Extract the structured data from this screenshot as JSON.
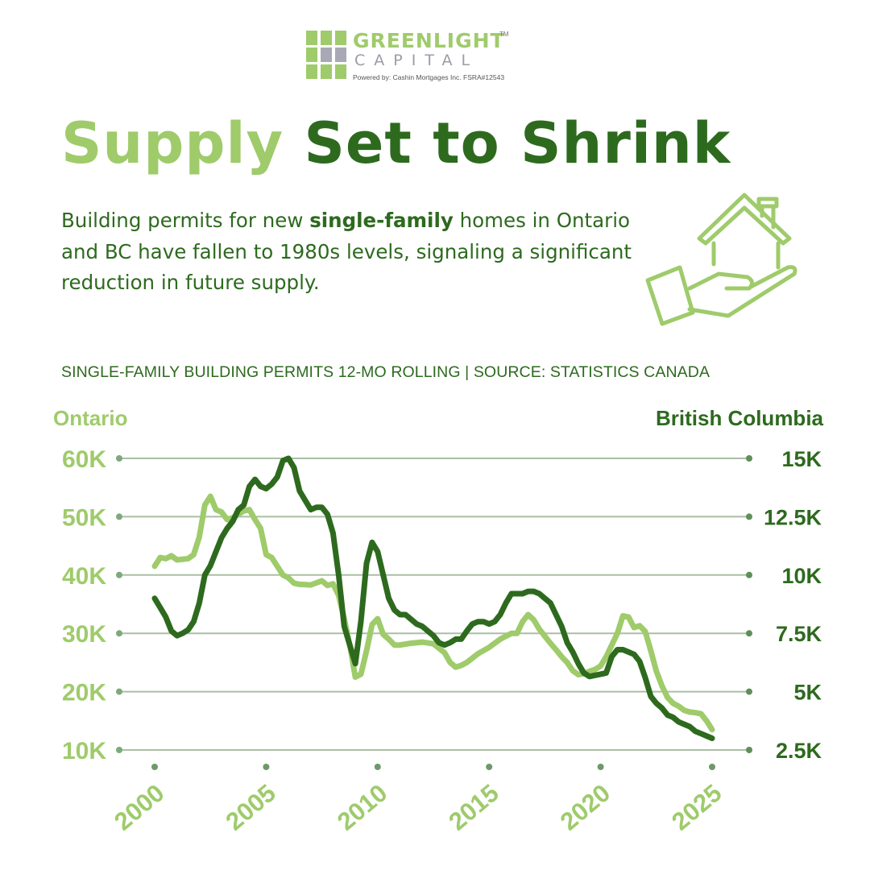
{
  "logo": {
    "name": "GREENLIGHT",
    "tm": "TM",
    "sub": "CAPITAL",
    "powered": "Powered by:  Cashin Mortgages Inc.  FSRA#12543"
  },
  "title": {
    "part1": "Supply",
    "part2": "Set to Shrink"
  },
  "description": {
    "before": "Building permits for new ",
    "bold": "single-family",
    "after": " homes in Ontario and BC have fallen to 1980s levels, signaling a significant reduction in future supply."
  },
  "icon": "house-in-hand-icon",
  "colors": {
    "light_green": "#9fcb6b",
    "dark_green": "#2d6a1e",
    "grid": "#a9bfa4"
  },
  "chart_data": {
    "type": "line",
    "title": "SINGLE-FAMILY BUILDING PERMITS 12-MO ROLLING | SOURCE: STATISTICS CANADA",
    "legend": "none",
    "grid": true,
    "x_ticks": [
      "2000",
      "2005",
      "2010",
      "2015",
      "2020",
      "2025"
    ],
    "xlim": [
      2000,
      2025
    ],
    "left_axis": {
      "label": "Ontario",
      "ticks": [
        "60K",
        "50K",
        "40K",
        "30K",
        "20K",
        "10K"
      ],
      "tick_values": [
        60000,
        50000,
        40000,
        30000,
        20000,
        10000
      ],
      "ylim": [
        10000,
        60000
      ]
    },
    "right_axis": {
      "label": "British Columbia",
      "ticks": [
        "15K",
        "12.5K",
        "10K",
        "7.5K",
        "5K",
        "2.5K"
      ],
      "tick_values": [
        15000,
        12500,
        10000,
        7500,
        5000,
        2500
      ],
      "ylim": [
        2500,
        15000
      ]
    },
    "series": [
      {
        "name": "Ontario",
        "axis": "left",
        "color": "#9fcb6b",
        "x": [
          2000.0,
          2000.25,
          2000.5,
          2000.75,
          2001.0,
          2001.5,
          2001.75,
          2002.0,
          2002.25,
          2002.5,
          2002.75,
          2003.0,
          2003.25,
          2003.5,
          2003.75,
          2004.0,
          2004.25,
          2004.5,
          2004.75,
          2005.0,
          2005.25,
          2005.5,
          2005.75,
          2006.0,
          2006.25,
          2006.5,
          2007.0,
          2007.5,
          2007.75,
          2008.0,
          2008.25,
          2008.5,
          2008.75,
          2009.0,
          2009.25,
          2009.5,
          2009.75,
          2010.0,
          2010.25,
          2010.5,
          2010.75,
          2011.0,
          2011.5,
          2012.0,
          2012.5,
          2013.0,
          2013.25,
          2013.5,
          2013.75,
          2014.0,
          2014.5,
          2015.0,
          2015.5,
          2016.0,
          2016.25,
          2016.5,
          2016.75,
          2017.0,
          2017.25,
          2017.5,
          2017.75,
          2018.0,
          2018.25,
          2018.5,
          2018.75,
          2019.0,
          2019.25,
          2019.5,
          2019.75,
          2020.0,
          2020.25,
          2020.5,
          2020.75,
          2021.0,
          2021.25,
          2021.5,
          2021.75,
          2022.0,
          2022.25,
          2022.5,
          2022.75,
          2023.0,
          2023.25,
          2023.5,
          2023.75,
          2024.0,
          2024.25,
          2024.5,
          2024.75,
          2025.0
        ],
        "values": [
          41500,
          43000,
          42800,
          43300,
          42600,
          42800,
          43500,
          46500,
          52000,
          53500,
          51200,
          50800,
          49500,
          49800,
          50400,
          51000,
          51200,
          49500,
          48000,
          43500,
          43000,
          41500,
          40000,
          39500,
          38600,
          38400,
          38300,
          39000,
          38200,
          38500,
          36500,
          32500,
          28000,
          22500,
          23000,
          27000,
          31500,
          32500,
          29800,
          29000,
          28000,
          28000,
          28300,
          28500,
          28200,
          26700,
          25000,
          24200,
          24500,
          25000,
          26500,
          27600,
          29000,
          30000,
          30000,
          32000,
          33200,
          32300,
          30700,
          29500,
          28300,
          27200,
          26000,
          25000,
          23600,
          22900,
          23100,
          23500,
          23800,
          24400,
          26000,
          28000,
          30000,
          33000,
          32800,
          31000,
          31300,
          30300,
          27000,
          23500,
          21000,
          19000,
          18000,
          17500,
          16800,
          16500,
          16400,
          16200,
          15000,
          13500
        ]
      },
      {
        "name": "British Columbia",
        "axis": "right",
        "color": "#2d6a1e",
        "x": [
          2000.0,
          2000.25,
          2000.5,
          2000.75,
          2001.0,
          2001.25,
          2001.5,
          2001.75,
          2002.0,
          2002.25,
          2002.5,
          2002.75,
          2003.0,
          2003.25,
          2003.5,
          2003.75,
          2004.0,
          2004.25,
          2004.5,
          2004.75,
          2005.0,
          2005.25,
          2005.5,
          2005.75,
          2006.0,
          2006.25,
          2006.5,
          2006.75,
          2007.0,
          2007.25,
          2007.5,
          2007.75,
          2008.0,
          2008.25,
          2008.5,
          2008.75,
          2009.0,
          2009.25,
          2009.5,
          2009.75,
          2010.0,
          2010.25,
          2010.5,
          2010.75,
          2011.0,
          2011.25,
          2011.5,
          2011.75,
          2012.0,
          2012.25,
          2012.5,
          2012.75,
          2013.0,
          2013.25,
          2013.5,
          2013.75,
          2014.0,
          2014.25,
          2014.5,
          2014.75,
          2015.0,
          2015.25,
          2015.5,
          2015.75,
          2016.0,
          2016.25,
          2016.5,
          2016.75,
          2017.0,
          2017.25,
          2017.5,
          2017.75,
          2018.0,
          2018.25,
          2018.5,
          2018.75,
          2019.0,
          2019.25,
          2019.5,
          2019.75,
          2020.0,
          2020.25,
          2020.5,
          2020.75,
          2021.0,
          2021.25,
          2021.5,
          2021.75,
          2022.0,
          2022.25,
          2022.5,
          2022.75,
          2023.0,
          2023.25,
          2023.5,
          2023.75,
          2024.0,
          2024.25,
          2024.5,
          2024.75,
          2025.0
        ],
        "values": [
          9000,
          8600,
          8200,
          7600,
          7400,
          7500,
          7650,
          8000,
          8800,
          10000,
          10400,
          11000,
          11600,
          12000,
          12300,
          12800,
          13000,
          13800,
          14100,
          13800,
          13700,
          13900,
          14200,
          14900,
          15000,
          14600,
          13600,
          13200,
          12800,
          12900,
          12900,
          12600,
          11800,
          10000,
          7800,
          7000,
          6200,
          8000,
          10500,
          11400,
          11000,
          10000,
          9000,
          8500,
          8300,
          8300,
          8100,
          7900,
          7800,
          7600,
          7400,
          7100,
          7000,
          7100,
          7250,
          7250,
          7600,
          7900,
          8000,
          8000,
          7900,
          8000,
          8300,
          8800,
          9200,
          9200,
          9200,
          9300,
          9300,
          9200,
          9000,
          8800,
          8300,
          7800,
          7100,
          6700,
          6200,
          5800,
          5650,
          5700,
          5750,
          5800,
          6500,
          6800,
          6800,
          6700,
          6600,
          6300,
          5600,
          4800,
          4500,
          4300,
          4000,
          3900,
          3700,
          3600,
          3500,
          3300,
          3200,
          3100,
          3000
        ]
      }
    ]
  }
}
